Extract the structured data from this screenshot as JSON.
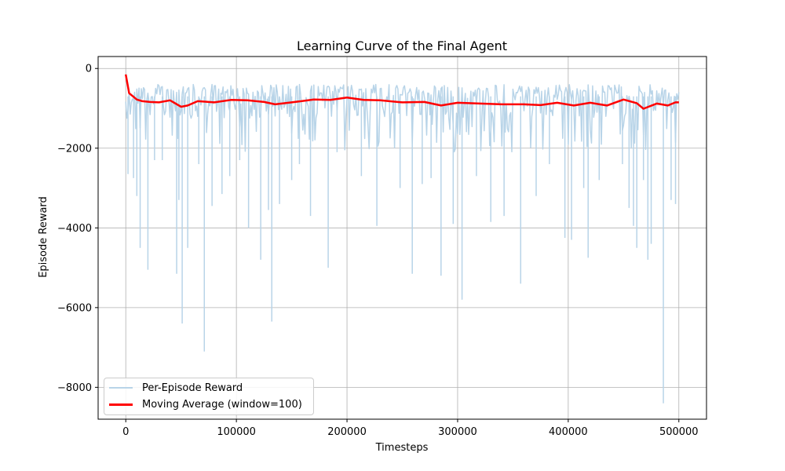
{
  "chart_data": {
    "type": "line",
    "title": "Learning Curve of the Final Agent",
    "xlabel": "Timesteps",
    "ylabel": "Episode Reward",
    "xlim": [
      -25000,
      525000
    ],
    "ylim": [
      -8800,
      300
    ],
    "xticks": [
      0,
      100000,
      200000,
      300000,
      400000,
      500000
    ],
    "xtick_labels": [
      "0",
      "100000",
      "200000",
      "300000",
      "400000",
      "500000"
    ],
    "yticks": [
      0,
      -2000,
      -4000,
      -6000,
      -8000
    ],
    "ytick_labels": [
      "0",
      "−2000",
      "−4000",
      "−6000",
      "−8000"
    ],
    "grid": true,
    "legend_position": "lower-left",
    "series": [
      {
        "name": "Per-Episode Reward",
        "color": "#b8d4e8",
        "style": "noisy-band",
        "band_top": -400,
        "band_typical_low": -1800,
        "dips": [
          [
            2000,
            -2650
          ],
          [
            7000,
            -2750
          ],
          [
            10000,
            -3200
          ],
          [
            13000,
            -4500
          ],
          [
            20000,
            -5050
          ],
          [
            26000,
            -2300
          ],
          [
            33000,
            -2300
          ],
          [
            46000,
            -5150
          ],
          [
            48000,
            -3300
          ],
          [
            51000,
            -6400
          ],
          [
            56000,
            -4500
          ],
          [
            66000,
            -2400
          ],
          [
            71000,
            -7100
          ],
          [
            78000,
            -3450
          ],
          [
            87000,
            -3150
          ],
          [
            94000,
            -2700
          ],
          [
            103000,
            -2300
          ],
          [
            111000,
            -4000
          ],
          [
            122000,
            -4800
          ],
          [
            129000,
            -3550
          ],
          [
            132000,
            -6350
          ],
          [
            139000,
            -3400
          ],
          [
            150000,
            -2800
          ],
          [
            157000,
            -2400
          ],
          [
            167000,
            -3700
          ],
          [
            183000,
            -5000
          ],
          [
            191000,
            -2100
          ],
          [
            213000,
            -2700
          ],
          [
            227000,
            -3950
          ],
          [
            248000,
            -3000
          ],
          [
            259000,
            -5150
          ],
          [
            268000,
            -2900
          ],
          [
            276000,
            -2750
          ],
          [
            285000,
            -5200
          ],
          [
            296000,
            -3900
          ],
          [
            304000,
            -5800
          ],
          [
            317000,
            -2700
          ],
          [
            330000,
            -3850
          ],
          [
            342000,
            -3700
          ],
          [
            357000,
            -5400
          ],
          [
            371000,
            -3200
          ],
          [
            383000,
            -2400
          ],
          [
            397000,
            -4250
          ],
          [
            403000,
            -4300
          ],
          [
            414000,
            -3000
          ],
          [
            418000,
            -4750
          ],
          [
            428000,
            -2800
          ],
          [
            449000,
            -2400
          ],
          [
            455000,
            -3500
          ],
          [
            459000,
            -3950
          ],
          [
            462000,
            -4500
          ],
          [
            468000,
            -2800
          ],
          [
            472000,
            -4800
          ],
          [
            475000,
            -4400
          ],
          [
            486000,
            -8400
          ],
          [
            493000,
            -3300
          ],
          [
            497000,
            -3400
          ]
        ]
      },
      {
        "name": "Moving Average (window=100)",
        "color": "#ff0000",
        "style": "line",
        "points": [
          [
            0,
            -150
          ],
          [
            3000,
            -620
          ],
          [
            10000,
            -780
          ],
          [
            15000,
            -820
          ],
          [
            22000,
            -840
          ],
          [
            30000,
            -850
          ],
          [
            40000,
            -800
          ],
          [
            50000,
            -960
          ],
          [
            56000,
            -930
          ],
          [
            65000,
            -820
          ],
          [
            80000,
            -850
          ],
          [
            95000,
            -790
          ],
          [
            110000,
            -800
          ],
          [
            125000,
            -840
          ],
          [
            135000,
            -900
          ],
          [
            150000,
            -850
          ],
          [
            170000,
            -780
          ],
          [
            185000,
            -790
          ],
          [
            200000,
            -730
          ],
          [
            215000,
            -790
          ],
          [
            230000,
            -800
          ],
          [
            250000,
            -850
          ],
          [
            270000,
            -840
          ],
          [
            285000,
            -930
          ],
          [
            300000,
            -860
          ],
          [
            320000,
            -880
          ],
          [
            340000,
            -900
          ],
          [
            360000,
            -900
          ],
          [
            375000,
            -920
          ],
          [
            390000,
            -860
          ],
          [
            405000,
            -930
          ],
          [
            420000,
            -860
          ],
          [
            435000,
            -930
          ],
          [
            450000,
            -780
          ],
          [
            462000,
            -870
          ],
          [
            468000,
            -1010
          ],
          [
            480000,
            -880
          ],
          [
            490000,
            -930
          ],
          [
            497000,
            -850
          ],
          [
            500000,
            -850
          ]
        ]
      }
    ]
  }
}
